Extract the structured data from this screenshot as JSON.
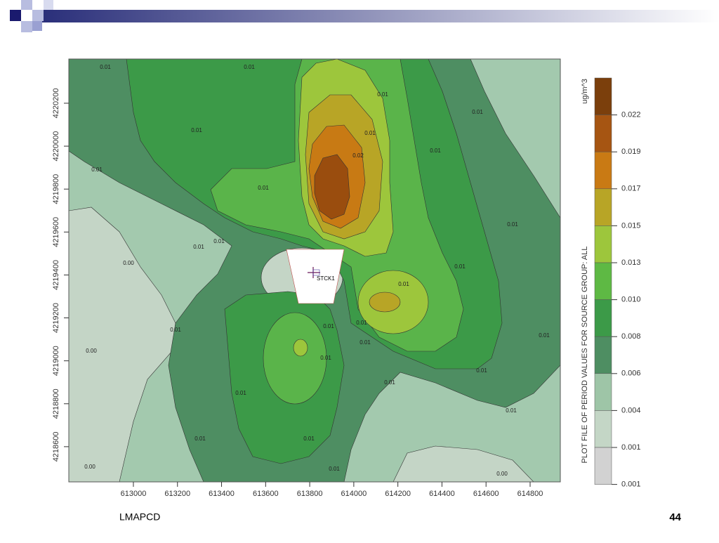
{
  "axes": {
    "xlim": [
      612707,
      614937
    ],
    "ylim": [
      4218436,
      4220406
    ],
    "xticks": [
      613000,
      613200,
      613400,
      613600,
      613800,
      614000,
      614200,
      614400,
      614600,
      614800
    ],
    "yticks": [
      4218600,
      4218800,
      4219000,
      4219200,
      4219400,
      4219600,
      4219800,
      4220000,
      4220200
    ]
  },
  "colorbar": {
    "unit": "ug/m^3",
    "title": "PLOT FILE OF PERIOD VALUES FOR SOURCE GROUP: ALL",
    "labels": [
      "0.022",
      "0.019",
      "0.017",
      "0.015",
      "0.013",
      "0.010",
      "0.008",
      "0.006",
      "0.004",
      "0.001",
      "0.001"
    ]
  },
  "source_label": "STCK1",
  "contour_labels": [
    "0.01",
    "0.01",
    "0.01",
    "0.01",
    "0.01",
    "0.01",
    "0.01",
    "0.01",
    "0.01",
    "0.02",
    "0.01",
    "0.01",
    "0.01",
    "0.01",
    "0.01",
    "0.01",
    "0.01",
    "0.01",
    "0.01",
    "0.01",
    "0.01",
    "0.01",
    "0.01",
    "0.01",
    "0.01",
    "0.01",
    "0.00",
    "0.00",
    "0.00",
    "0.01",
    "0.00",
    "0.01"
  ],
  "footer": {
    "left": "LMAPCD",
    "page": "44"
  }
}
